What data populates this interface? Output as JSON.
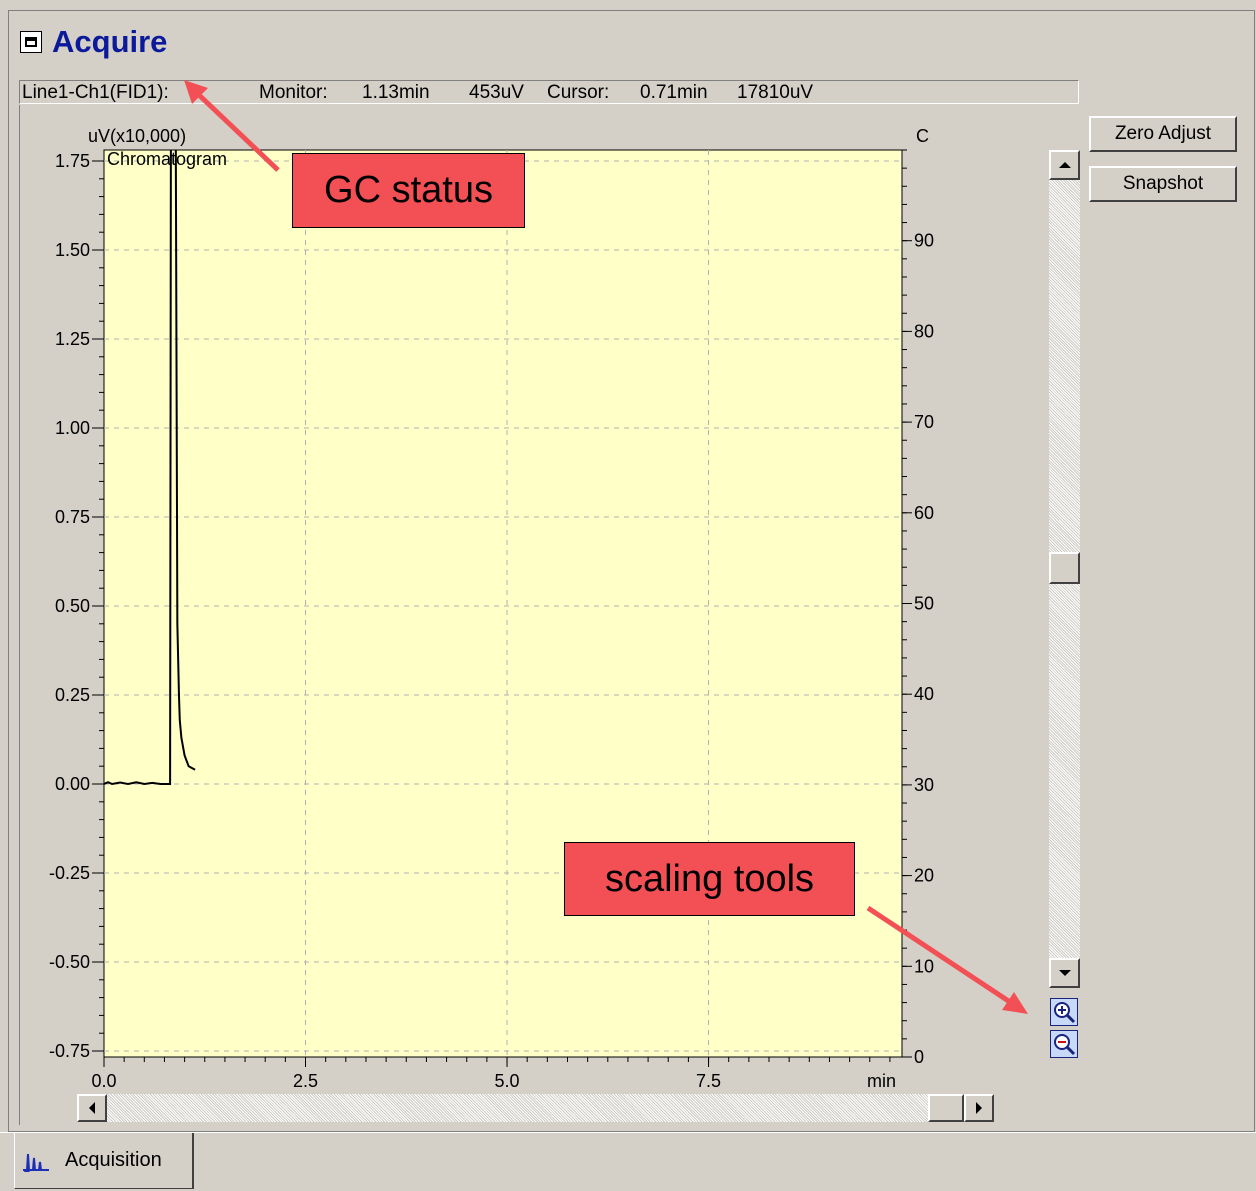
{
  "window": {
    "title": "Acquire"
  },
  "status_bar": {
    "line": "Line1-Ch1(FID1):",
    "monitor_label": "Monitor:",
    "monitor_time": "1.13min",
    "monitor_value": "453uV",
    "cursor_label": "Cursor:",
    "cursor_time": "0.71min",
    "cursor_value": "17810uV"
  },
  "buttons": {
    "zero_adjust": "Zero Adjust",
    "snapshot": "Snapshot"
  },
  "tabs": [
    {
      "label": "Acquisition",
      "icon": "chromatogram-icon"
    }
  ],
  "callouts": {
    "gc_status": "GC status",
    "scaling_tools": "scaling tools"
  },
  "icons": {
    "zoom_in": "zoom-in-icon",
    "zoom_out": "zoom-out-icon",
    "minimize": "minimize-icon"
  },
  "colors": {
    "plot_background": "#ffffc8",
    "title": "#0a1a9a",
    "callout": "#f25055"
  },
  "chart_data": {
    "type": "line",
    "title": "Chromatogram",
    "ylabel": "uV(x10,000)",
    "y2label": "C",
    "xlabel": "min",
    "xlim": [
      0.0,
      9.9
    ],
    "ylim": [
      -0.75,
      1.82
    ],
    "y2lim": [
      0,
      100
    ],
    "x_ticks": [
      "0.0",
      "2.5",
      "5.0",
      "7.5"
    ],
    "x_tick_values": [
      0.0,
      2.5,
      5.0,
      7.5
    ],
    "y_ticks": [
      "1.75",
      "1.50",
      "1.25",
      "1.00",
      "0.75",
      "0.50",
      "0.25",
      "0.00",
      "-0.25",
      "-0.50",
      "-0.75"
    ],
    "y_tick_values": [
      1.75,
      1.5,
      1.25,
      1.0,
      0.75,
      0.5,
      0.25,
      0.0,
      -0.25,
      -0.5,
      -0.75
    ],
    "y2_ticks": [
      "90",
      "80",
      "70",
      "60",
      "50",
      "40",
      "30",
      "20",
      "10",
      "0"
    ],
    "y2_tick_values": [
      90,
      80,
      70,
      60,
      50,
      40,
      30,
      20,
      10,
      0
    ],
    "grid": true,
    "series": [
      {
        "x": [
          0.0,
          0.05,
          0.1,
          0.2,
          0.3,
          0.4,
          0.5,
          0.6,
          0.7,
          0.82,
          0.83,
          0.85,
          0.87,
          0.89,
          0.91,
          0.93,
          0.94,
          0.96,
          1.0,
          1.05,
          1.13
        ],
        "y": [
          0.0,
          0.005,
          0.0,
          0.004,
          0.0,
          0.005,
          0.0,
          0.003,
          0.0,
          0.0,
          1.85,
          1.85,
          1.85,
          1.85,
          0.45,
          0.25,
          0.18,
          0.13,
          0.08,
          0.05,
          0.04
        ]
      }
    ]
  }
}
